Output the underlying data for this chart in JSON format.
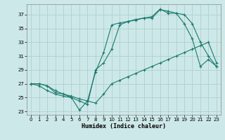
{
  "background_color": "#cde8e8",
  "grid_color": "#b0d0d0",
  "line_color": "#1a7a6e",
  "line_width": 0.8,
  "marker": "+",
  "marker_size": 3,
  "marker_edge_width": 0.8,
  "xlabel": "Humidex (Indice chaleur)",
  "xlim": [
    -0.5,
    23.5
  ],
  "ylim": [
    22.5,
    38.5
  ],
  "yticks": [
    23,
    25,
    27,
    29,
    31,
    33,
    35,
    37
  ],
  "xticks": [
    0,
    1,
    2,
    3,
    4,
    5,
    6,
    7,
    8,
    9,
    10,
    11,
    12,
    13,
    14,
    15,
    16,
    17,
    18,
    19,
    20,
    21,
    22,
    23
  ],
  "series1_x": [
    0,
    1,
    2,
    3,
    4,
    5,
    6,
    7,
    8,
    9,
    10,
    11,
    12,
    13,
    14,
    15,
    16,
    17,
    18,
    19,
    20,
    21,
    22,
    23
  ],
  "series1_y": [
    27.0,
    27.0,
    26.7,
    25.7,
    25.5,
    25.2,
    24.8,
    24.5,
    24.2,
    25.5,
    27.0,
    27.5,
    28.0,
    28.5,
    29.0,
    29.5,
    30.0,
    30.5,
    31.0,
    31.5,
    32.0,
    32.5,
    33.0,
    30.0
  ],
  "series2_x": [
    0,
    1,
    2,
    3,
    4,
    5,
    6,
    7,
    8,
    9,
    10,
    11,
    12,
    13,
    14,
    15,
    16,
    17,
    18,
    19,
    20,
    21,
    22,
    23
  ],
  "series2_y": [
    27.0,
    27.0,
    26.7,
    26.0,
    25.5,
    25.0,
    24.5,
    24.0,
    29.0,
    30.0,
    32.0,
    35.5,
    36.0,
    36.2,
    36.5,
    36.5,
    37.7,
    37.5,
    37.2,
    37.0,
    35.7,
    33.0,
    31.0,
    29.5
  ],
  "series3_x": [
    0,
    1,
    2,
    3,
    4,
    5,
    6,
    7,
    8,
    9,
    10,
    11,
    12,
    13,
    14,
    15,
    16,
    17,
    18,
    19,
    20,
    21,
    22,
    23
  ],
  "series3_y": [
    27.0,
    26.7,
    26.0,
    25.5,
    25.2,
    25.0,
    23.2,
    24.5,
    28.7,
    31.5,
    35.5,
    35.8,
    36.0,
    36.3,
    36.5,
    36.7,
    37.8,
    37.2,
    37.2,
    35.7,
    33.5,
    29.5,
    30.5,
    29.5
  ]
}
